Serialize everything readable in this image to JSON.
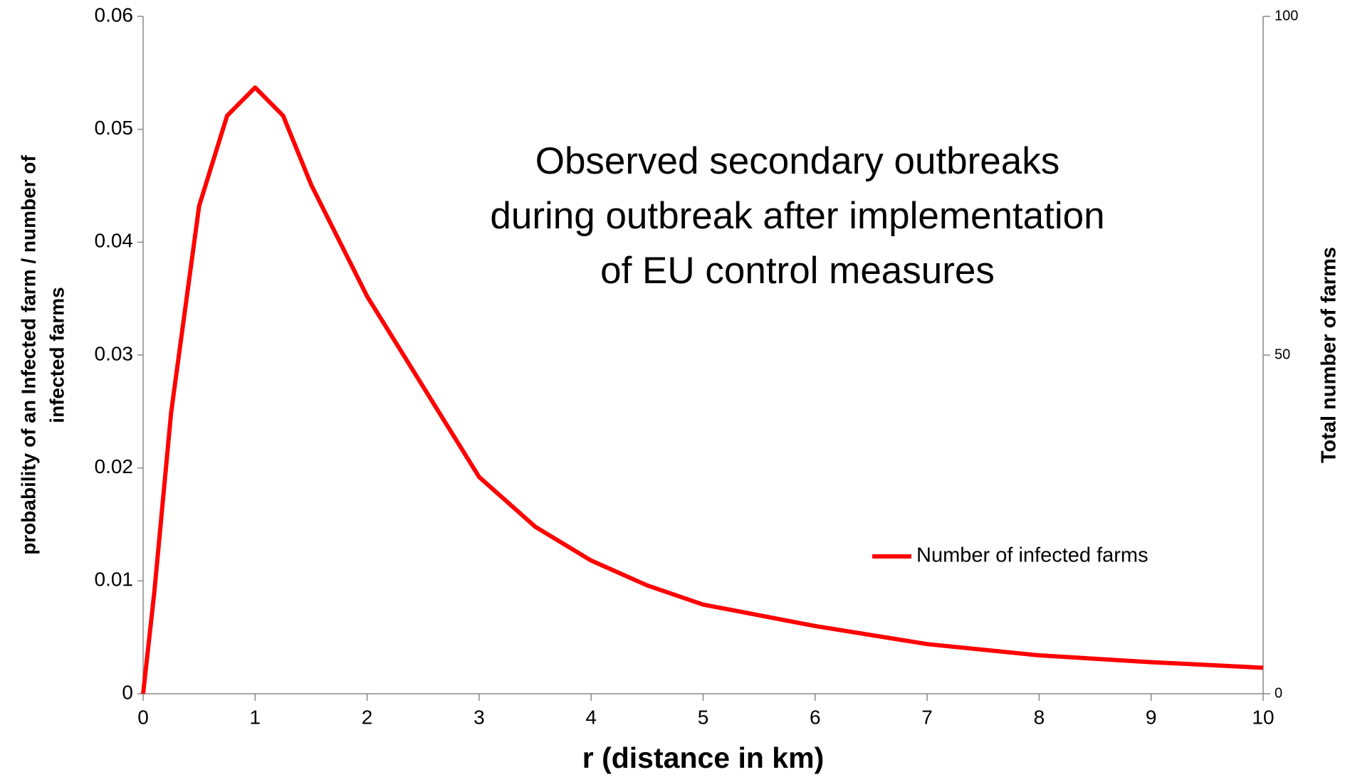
{
  "chart_data": {
    "type": "line",
    "annotation": [
      "Observed secondary outbreaks",
      "during outbreak after implementation",
      "of EU control measures"
    ],
    "xlabel": "r (distance in km)",
    "ylabel": [
      "probability of an Infected farm / number of",
      "infected farms"
    ],
    "y2label": "Total number of farms",
    "x": [
      0,
      0.1,
      0.25,
      0.5,
      0.75,
      1,
      1.25,
      1.5,
      2,
      2.5,
      3,
      3.5,
      4,
      4.5,
      5,
      6,
      7,
      8,
      9,
      10
    ],
    "series": [
      {
        "name": "Number of infected farms",
        "color": "#ff0000",
        "values": [
          0,
          0.009,
          0.0249,
          0.0432,
          0.0512,
          0.0537,
          0.0512,
          0.0451,
          0.0352,
          0.0272,
          0.0192,
          0.0148,
          0.0118,
          0.0096,
          0.0079,
          0.006,
          0.0044,
          0.0034,
          0.0028,
          0.0023
        ]
      }
    ],
    "xlim": [
      0,
      10
    ],
    "xticks": [
      0,
      1,
      2,
      3,
      4,
      5,
      6,
      7,
      8,
      9,
      10
    ],
    "ylim": [
      0,
      0.06
    ],
    "yticks": [
      0,
      0.01,
      0.02,
      0.03,
      0.04,
      0.05,
      0.06
    ],
    "y2lim": [
      0,
      100
    ],
    "y2ticks": [
      0,
      50,
      100
    ],
    "legend": "right",
    "grid": false
  }
}
